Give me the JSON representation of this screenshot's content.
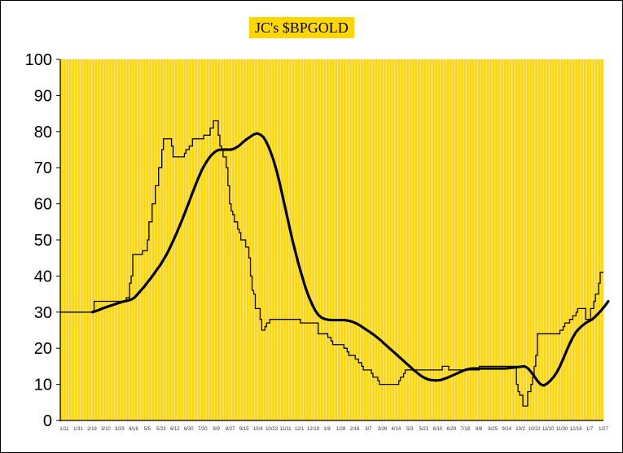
{
  "chart_data": {
    "type": "line",
    "title": "JC's $BPGOLD",
    "xlabel": "",
    "ylabel": "",
    "ylim": [
      0,
      100
    ],
    "yticks": [
      0,
      10,
      20,
      30,
      40,
      50,
      60,
      70,
      80,
      90,
      100
    ],
    "grid": "vertical",
    "plot_background": "#FFD700",
    "grid_color": "#F2E6B0",
    "x_tick_labels": [
      "1/11",
      "1/31",
      "2/19",
      "3/10",
      "3/29",
      "4/16",
      "5/5",
      "5/23",
      "6/12",
      "6/30",
      "7/20",
      "8/9",
      "8/27",
      "9/15",
      "10/4",
      "10/23",
      "11/11",
      "12/1",
      "12/19",
      "1/9",
      "1/28",
      "2/16",
      "3/7",
      "3/26",
      "4/14",
      "5/3",
      "5/21",
      "6/10",
      "6/29",
      "7/18",
      "8/6",
      "8/25",
      "9/14",
      "10/2",
      "10/22",
      "11/10",
      "11/30",
      "12/18",
      "1/7",
      "1/27"
    ],
    "series": [
      {
        "style": "thin-step",
        "color": "#000000",
        "values": [
          30,
          30,
          30,
          30,
          30,
          30,
          30,
          30,
          30,
          30,
          30,
          30,
          30,
          30,
          30,
          30,
          30,
          30,
          30,
          30,
          30,
          33,
          33,
          33,
          33,
          33,
          33,
          33,
          33,
          33,
          33,
          33,
          33,
          33,
          33,
          33,
          33,
          33,
          33,
          33,
          33,
          34,
          34,
          38,
          40,
          46,
          46,
          46,
          46,
          46,
          46,
          47,
          47,
          47,
          50,
          55,
          55,
          60,
          60,
          65,
          65,
          70,
          70,
          75,
          78,
          78,
          78,
          78,
          78,
          76,
          73,
          73,
          73,
          73,
          73,
          73,
          73,
          74,
          75,
          75,
          76,
          76,
          78,
          78,
          78,
          78,
          78,
          78,
          78,
          79,
          79,
          79,
          79,
          81,
          81,
          83,
          83,
          83,
          79,
          76,
          75,
          73,
          73,
          70,
          65,
          60,
          58,
          57,
          55,
          55,
          53,
          52,
          50,
          50,
          50,
          48,
          48,
          45,
          40,
          36,
          35,
          31,
          31,
          31,
          28,
          25,
          25,
          26,
          27,
          27,
          28,
          28,
          28,
          28,
          28,
          28,
          28,
          28,
          28,
          28,
          28,
          28,
          28,
          28,
          28,
          28,
          28,
          28,
          28,
          27,
          27,
          27,
          27,
          27,
          27,
          27,
          27,
          27,
          27,
          27,
          24,
          24,
          24,
          24,
          24,
          24,
          23,
          23,
          22,
          21,
          21,
          21,
          21,
          21,
          21,
          21,
          20,
          20,
          19,
          18,
          18,
          18,
          18,
          17,
          17,
          16,
          16,
          15,
          14,
          14,
          14,
          14,
          14,
          13,
          12,
          12,
          12,
          11,
          10,
          10,
          10,
          10,
          10,
          10,
          10,
          10,
          10,
          10,
          10,
          10,
          11,
          12,
          12,
          13,
          14,
          14,
          14,
          14,
          14,
          14,
          14,
          14,
          14,
          14,
          14,
          14,
          14,
          14,
          14,
          14,
          14,
          14,
          14,
          14,
          14,
          14,
          14,
          15,
          15,
          15,
          15,
          14,
          14,
          14,
          14,
          14,
          14,
          14,
          14,
          14,
          14,
          14,
          14,
          14,
          14,
          14,
          14,
          14,
          14,
          14,
          15,
          15,
          15,
          15,
          15,
          15,
          15,
          15,
          15,
          15,
          15,
          15,
          15,
          15,
          15,
          15,
          15,
          15,
          15,
          15,
          15,
          15,
          15,
          10,
          8,
          7,
          7,
          4,
          4,
          4,
          8,
          8,
          10,
          12,
          15,
          18,
          24,
          24,
          24,
          24,
          24,
          24,
          24,
          24,
          24,
          24,
          24,
          24,
          24,
          24,
          25,
          25,
          26,
          27,
          27,
          27,
          28,
          28,
          29,
          29,
          30,
          31,
          31,
          31,
          31,
          31,
          28,
          28,
          28,
          31,
          31,
          33,
          35,
          35,
          38,
          41,
          41,
          41
        ]
      },
      {
        "style": "thick-smooth",
        "color": "#000000",
        "start_index": 20,
        "values": [
          30,
          30.3,
          30.6,
          31,
          31.3,
          31.6,
          31.9,
          32.2,
          32.5,
          32.8,
          33,
          33.2,
          33.5,
          34,
          35,
          36,
          37,
          38.2,
          39.3,
          40.5,
          41.8,
          43,
          44.5,
          46,
          47.8,
          49.7,
          51.7,
          53.8,
          56,
          58.3,
          60.6,
          63,
          65.3,
          67.5,
          69.5,
          71.1,
          72.5,
          73.6,
          74.4,
          74.9,
          75,
          75,
          75,
          75,
          75.3,
          75.8,
          76.5,
          77.3,
          78,
          78.6,
          79.2,
          79.5,
          79.2,
          78.5,
          77,
          75,
          72.5,
          69.5,
          66,
          62,
          58,
          54,
          50,
          46.5,
          43,
          40,
          37,
          34.5,
          32.4,
          30.6,
          29.3,
          28.5,
          28.1,
          27.9,
          27.8,
          27.8,
          27.8,
          27.8,
          27.8,
          27.7,
          27.5,
          27.2,
          26.8,
          26.3,
          25.7,
          25.1,
          24.5,
          23.9,
          23.2,
          22.5,
          21.7,
          20.9,
          20.1,
          19.3,
          18.5,
          17.7,
          16.9,
          16.1,
          15.3,
          14.5,
          13.7,
          13,
          12.3,
          11.8,
          11.4,
          11.2,
          11.1,
          11.1,
          11.2,
          11.5,
          11.8,
          12.2,
          12.6,
          13,
          13.4,
          13.8,
          14.1,
          14.3,
          14.4,
          14.4,
          14.4,
          14.4,
          14.4,
          14.4,
          14.4,
          14.4,
          14.4,
          14.4,
          14.4,
          14.5,
          14.6,
          14.7,
          14.8,
          14.9,
          15,
          14.5,
          13.5,
          12.3,
          11,
          10,
          9.7,
          10.2,
          11,
          12,
          13.3,
          15,
          17,
          19.2,
          21.2,
          23,
          24.5,
          25.5,
          26.3,
          27,
          27.5,
          28,
          28.8,
          29.7,
          30.7,
          31.8,
          33
        ]
      }
    ]
  }
}
